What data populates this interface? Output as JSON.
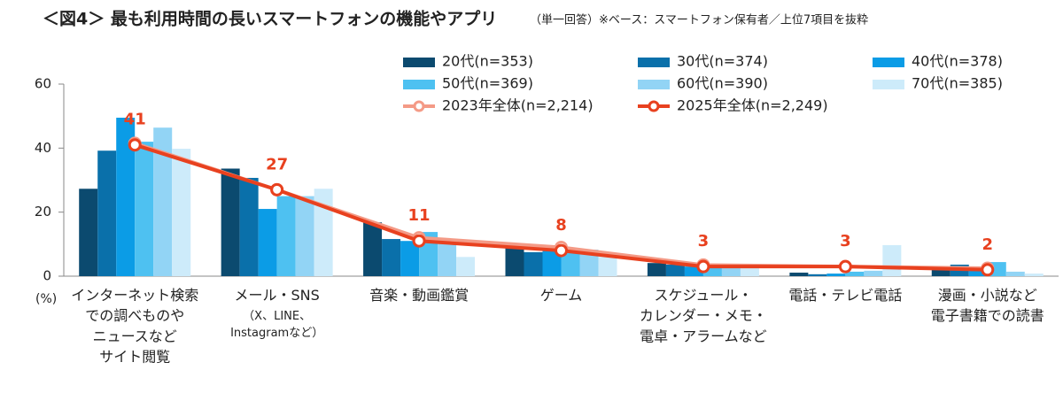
{
  "chart_data": {
    "type": "bar_line",
    "title": "＜図4＞ 最も利用時間の長いスマートフォンの機能やアプリ",
    "subtitle": "（単一回答）※ベース：スマートフォン保有者／上位7項目を抜粋",
    "y_unit": "(%)",
    "categories": [
      "インターネット検索\nでの調べものや\nニュースなど\nサイト閲覧",
      "メール・SNS",
      "音楽・動画鑑賞",
      "ゲーム",
      "スケジュール・\nカレンダー・メモ・\n電卓・アラームなど",
      "電話・テレビ電話",
      "漫画・小説など\n電子書籍での読書"
    ],
    "category_notes": [
      null,
      "（X、LINE、\nInstagramなど）",
      null,
      null,
      null,
      null,
      null
    ],
    "ylim": [
      0,
      60
    ],
    "yticks": [
      0,
      20,
      40,
      60
    ],
    "series": [
      {
        "name": "20代(n=353)",
        "type": "bar",
        "color": "#0b4a6f",
        "values": [
          27.3,
          33.6,
          16.8,
          9.4,
          4.1,
          1.1,
          2.5
        ]
      },
      {
        "name": "30代(n=374)",
        "type": "bar",
        "color": "#0a70aa",
        "values": [
          39.2,
          30.7,
          11.6,
          7.5,
          3.6,
          0.6,
          3.6
        ]
      },
      {
        "name": "40代(n=378)",
        "type": "bar",
        "color": "#0b9ce6",
        "values": [
          49.5,
          21.0,
          11.0,
          8.3,
          3.0,
          0.8,
          2.8
        ]
      },
      {
        "name": "50代(n=369)",
        "type": "bar",
        "color": "#4ec1f1",
        "values": [
          42.0,
          25.0,
          13.8,
          7.7,
          2.8,
          1.4,
          4.4
        ]
      },
      {
        "name": "60代(n=390)",
        "type": "bar",
        "color": "#92d4f5",
        "values": [
          46.4,
          25.0,
          11.0,
          8.3,
          3.3,
          1.7,
          1.4
        ]
      },
      {
        "name": "70代(n=385)",
        "type": "bar",
        "color": "#cdebfa",
        "values": [
          39.8,
          27.3,
          6.0,
          6.0,
          3.3,
          9.7,
          0.8
        ]
      },
      {
        "name": "2023年全体(n=2,214)",
        "type": "line",
        "color": "#f49a86",
        "values": [
          41.5,
          27,
          12,
          9,
          3.5,
          3,
          2.5
        ]
      },
      {
        "name": "2025年全体(n=2,249)",
        "type": "line",
        "color": "#e8411f",
        "values": [
          41,
          27,
          11,
          8,
          3,
          3,
          2
        ],
        "labels": true
      }
    ]
  }
}
